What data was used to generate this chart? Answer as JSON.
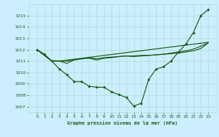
{
  "title": "Graphe pression niveau de la mer (hPa)",
  "background_color": "#cceeff",
  "grid_color": "#aaddcc",
  "line_color": "#1a5c1a",
  "line_marker": {
    "x": [
      0,
      1,
      2,
      3,
      4,
      5,
      6,
      7,
      8,
      9,
      10,
      11,
      12,
      13,
      14,
      15,
      16,
      17,
      18,
      19,
      20,
      21,
      22,
      23
    ],
    "y": [
      1012.0,
      1011.6,
      1011.0,
      1010.3,
      1009.8,
      1009.2,
      1009.2,
      1008.8,
      1008.7,
      1008.7,
      1008.3,
      1008.05,
      1007.8,
      1007.05,
      1007.3,
      1009.4,
      1010.3,
      1010.5,
      1011.0,
      1011.8,
      1012.5,
      1013.5,
      1015.0,
      1015.5
    ]
  },
  "line_flat1": {
    "x": [
      0,
      2,
      3,
      4,
      5,
      6,
      7,
      8,
      9,
      10,
      11,
      12,
      13,
      14,
      15,
      16,
      17,
      18,
      19,
      20,
      21,
      22,
      23
    ],
    "y": [
      1012.0,
      1011.0,
      1011.0,
      1010.8,
      1011.1,
      1011.2,
      1011.3,
      1011.2,
      1011.3,
      1011.35,
      1011.4,
      1011.45,
      1011.45,
      1011.5,
      1011.5,
      1011.55,
      1011.6,
      1011.65,
      1011.7,
      1011.8,
      1011.9,
      1012.1,
      1012.6
    ]
  },
  "line_flat2": {
    "x": [
      0,
      2,
      3,
      23
    ],
    "y": [
      1012.0,
      1011.0,
      1011.0,
      1012.65
    ]
  },
  "line_flat3": {
    "x": [
      0,
      2,
      3,
      4,
      5,
      6,
      7,
      8,
      9,
      10,
      11,
      12,
      13,
      14,
      15,
      16,
      17,
      18,
      19,
      20,
      21,
      22,
      23
    ],
    "y": [
      1012.0,
      1011.0,
      1011.0,
      1011.0,
      1011.1,
      1011.2,
      1011.25,
      1011.1,
      1011.25,
      1011.3,
      1011.4,
      1011.45,
      1011.4,
      1011.45,
      1011.5,
      1011.55,
      1011.6,
      1011.7,
      1011.8,
      1011.9,
      1012.05,
      1012.3,
      1012.6
    ]
  },
  "ylim": [
    1006.5,
    1016.0
  ],
  "yticks": [
    1007,
    1008,
    1009,
    1010,
    1011,
    1012,
    1013,
    1014,
    1015
  ],
  "xticks": [
    0,
    1,
    2,
    3,
    4,
    5,
    6,
    7,
    8,
    9,
    10,
    11,
    12,
    13,
    14,
    15,
    16,
    17,
    18,
    19,
    20,
    21,
    22,
    23
  ]
}
